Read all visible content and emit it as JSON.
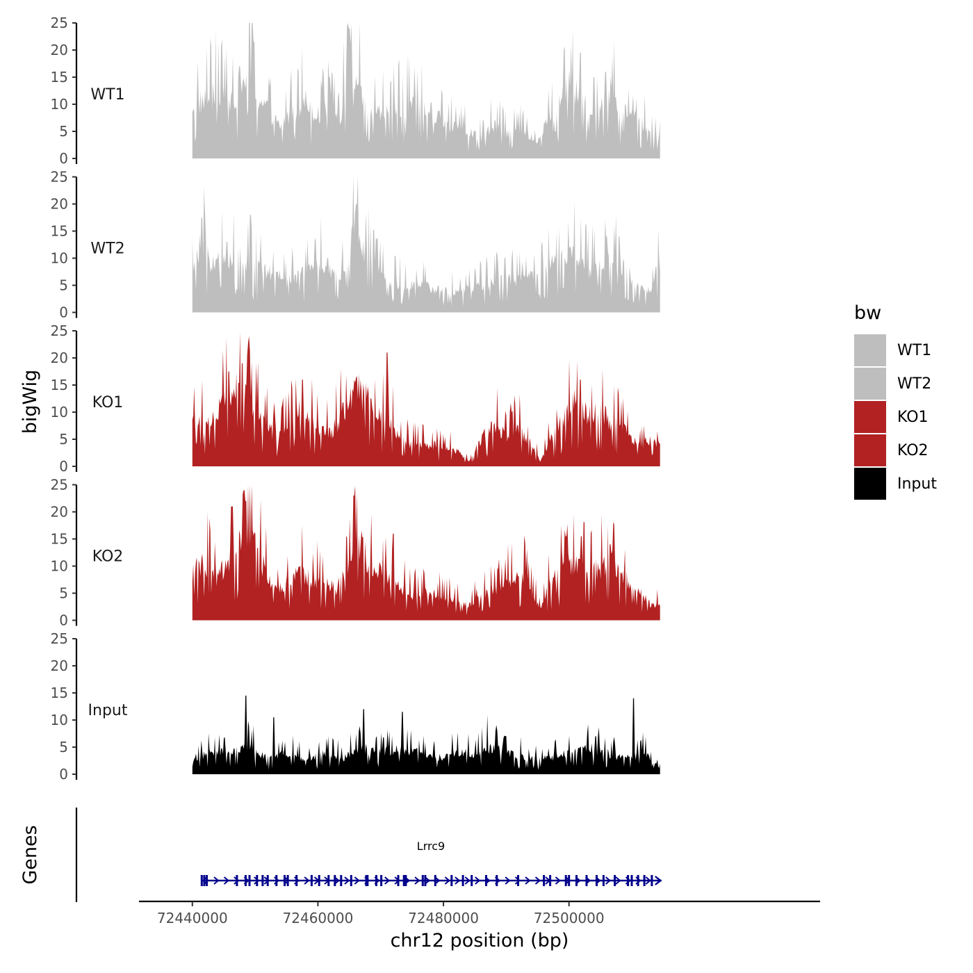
{
  "chart_data": {
    "type": "area",
    "title": "",
    "ylabel": "bigWig",
    "xlabel": "chr12 position (bp)",
    "genes_label": "Genes",
    "ylim": [
      0,
      25
    ],
    "yticks": [
      0,
      5,
      10,
      15,
      20,
      25
    ],
    "xlim": [
      72431500,
      72540000
    ],
    "xticks": [
      72440000,
      72460000,
      72480000,
      72500000
    ],
    "x_range": [
      72440000,
      72514500
    ],
    "legend": {
      "title": "bw",
      "entries": [
        {
          "label": "WT1",
          "color": "#bebebe"
        },
        {
          "label": "WT2",
          "color": "#bebebe"
        },
        {
          "label": "KO1",
          "color": "#b22222"
        },
        {
          "label": "KO2",
          "color": "#b22222"
        },
        {
          "label": "Input",
          "color": "#000000"
        }
      ]
    },
    "series": [
      {
        "name": "WT1",
        "color": "#bebebe",
        "profile": [
          [
            72440000,
            10
          ],
          [
            72442000,
            11
          ],
          [
            72444000,
            12
          ],
          [
            72446000,
            11
          ],
          [
            72448000,
            14
          ],
          [
            72449000,
            17
          ],
          [
            72450000,
            12
          ],
          [
            72452000,
            9
          ],
          [
            72454000,
            6
          ],
          [
            72456000,
            9
          ],
          [
            72458000,
            11
          ],
          [
            72460000,
            8
          ],
          [
            72462000,
            10
          ],
          [
            72463500,
            7
          ],
          [
            72465000,
            19
          ],
          [
            72466000,
            16
          ],
          [
            72467000,
            11
          ],
          [
            72469000,
            8
          ],
          [
            72472000,
            9
          ],
          [
            72475000,
            10
          ],
          [
            72478000,
            9
          ],
          [
            72481000,
            6
          ],
          [
            72484000,
            5
          ],
          [
            72486000,
            4
          ],
          [
            72488000,
            6
          ],
          [
            72490000,
            5
          ],
          [
            72493000,
            5
          ],
          [
            72495000,
            3
          ],
          [
            72496000,
            6
          ],
          [
            72498000,
            10
          ],
          [
            72500000,
            14
          ],
          [
            72502000,
            11
          ],
          [
            72504000,
            8
          ],
          [
            72506000,
            14
          ],
          [
            72508000,
            10
          ],
          [
            72510000,
            8
          ],
          [
            72512000,
            6
          ],
          [
            72514500,
            4
          ]
        ],
        "peaks": [
          [
            72449800,
            21.5
          ],
          [
            72465000,
            24
          ],
          [
            72461800,
            15
          ],
          [
            72501800,
            19.5
          ],
          [
            72505800,
            16
          ],
          [
            72504000,
            15
          ],
          [
            72447500,
            17
          ]
        ]
      },
      {
        "name": "WT2",
        "color": "#bebebe",
        "profile": [
          [
            72440000,
            7
          ],
          [
            72441500,
            14
          ],
          [
            72443000,
            9
          ],
          [
            72445000,
            10
          ],
          [
            72447000,
            11
          ],
          [
            72449000,
            9
          ],
          [
            72451000,
            8
          ],
          [
            72453000,
            7
          ],
          [
            72455000,
            6
          ],
          [
            72457000,
            7
          ],
          [
            72459000,
            8
          ],
          [
            72461000,
            9
          ],
          [
            72463000,
            7
          ],
          [
            72464500,
            9
          ],
          [
            72466000,
            16
          ],
          [
            72467500,
            11
          ],
          [
            72469000,
            8
          ],
          [
            72471000,
            6
          ],
          [
            72474000,
            5
          ],
          [
            72477000,
            5
          ],
          [
            72480000,
            4
          ],
          [
            72483000,
            4
          ],
          [
            72486000,
            5
          ],
          [
            72489000,
            6
          ],
          [
            72492000,
            6
          ],
          [
            72495000,
            7
          ],
          [
            72497000,
            9
          ],
          [
            72499000,
            10
          ],
          [
            72501000,
            11
          ],
          [
            72503000,
            8
          ],
          [
            72505000,
            9
          ],
          [
            72507000,
            10
          ],
          [
            72509000,
            8
          ],
          [
            72511000,
            5
          ],
          [
            72513000,
            4
          ],
          [
            72514500,
            10
          ]
        ],
        "peaks": [
          [
            72441500,
            17.5
          ],
          [
            72449200,
            18
          ],
          [
            72466200,
            20
          ],
          [
            72502600,
            16
          ],
          [
            72506000,
            14
          ],
          [
            72508000,
            14
          ],
          [
            72445500,
            13
          ]
        ]
      },
      {
        "name": "KO1",
        "color": "#b22222",
        "profile": [
          [
            72440000,
            9
          ],
          [
            72442000,
            8
          ],
          [
            72444000,
            10
          ],
          [
            72446000,
            14
          ],
          [
            72448000,
            15
          ],
          [
            72449500,
            12
          ],
          [
            72451000,
            9
          ],
          [
            72453000,
            6
          ],
          [
            72455000,
            7
          ],
          [
            72457000,
            11
          ],
          [
            72458500,
            9
          ],
          [
            72460000,
            7
          ],
          [
            72462000,
            6
          ],
          [
            72464000,
            10
          ],
          [
            72466000,
            14
          ],
          [
            72468000,
            13
          ],
          [
            72469500,
            9
          ],
          [
            72471000,
            10
          ],
          [
            72473000,
            5
          ],
          [
            72476000,
            4
          ],
          [
            72479000,
            4
          ],
          [
            72482000,
            3
          ],
          [
            72484000,
            1
          ],
          [
            72486000,
            5
          ],
          [
            72488000,
            8
          ],
          [
            72490000,
            6
          ],
          [
            72492000,
            7
          ],
          [
            72494000,
            4
          ],
          [
            72495500,
            1
          ],
          [
            72497000,
            5
          ],
          [
            72499000,
            9
          ],
          [
            72501000,
            12
          ],
          [
            72503000,
            10
          ],
          [
            72505000,
            11
          ],
          [
            72507000,
            8
          ],
          [
            72509000,
            7
          ],
          [
            72511000,
            4
          ],
          [
            72513000,
            5
          ],
          [
            72514500,
            4
          ]
        ],
        "peaks": [
          [
            72448000,
            19
          ],
          [
            72471000,
            21
          ],
          [
            72466500,
            17
          ],
          [
            72501800,
            16
          ],
          [
            72445800,
            17.5
          ],
          [
            72457500,
            16
          ],
          [
            72503600,
            15
          ]
        ]
      },
      {
        "name": "KO2",
        "color": "#b22222",
        "profile": [
          [
            72440000,
            9
          ],
          [
            72442000,
            11
          ],
          [
            72444000,
            8
          ],
          [
            72446000,
            12
          ],
          [
            72447500,
            14
          ],
          [
            72449000,
            17
          ],
          [
            72451000,
            11
          ],
          [
            72453000,
            6
          ],
          [
            72455000,
            7
          ],
          [
            72457000,
            9
          ],
          [
            72459000,
            8
          ],
          [
            72461000,
            7
          ],
          [
            72463000,
            6
          ],
          [
            72465000,
            11
          ],
          [
            72466500,
            15
          ],
          [
            72468000,
            11
          ],
          [
            72470000,
            9
          ],
          [
            72472000,
            7
          ],
          [
            72475000,
            5
          ],
          [
            72478000,
            5
          ],
          [
            72481000,
            4
          ],
          [
            72484000,
            3
          ],
          [
            72487000,
            5
          ],
          [
            72490000,
            7
          ],
          [
            72493000,
            8
          ],
          [
            72495500,
            2
          ],
          [
            72497000,
            7
          ],
          [
            72499000,
            11
          ],
          [
            72501000,
            10
          ],
          [
            72503000,
            9
          ],
          [
            72505000,
            10
          ],
          [
            72507000,
            11
          ],
          [
            72509000,
            8
          ],
          [
            72511000,
            6
          ],
          [
            72513000,
            3
          ],
          [
            72514500,
            3
          ]
        ],
        "peaks": [
          [
            72448200,
            24
          ],
          [
            72448500,
            22
          ],
          [
            72465700,
            23
          ],
          [
            72446200,
            21
          ],
          [
            72472000,
            16
          ],
          [
            72499500,
            15.5
          ],
          [
            72502000,
            15.5
          ],
          [
            72506500,
            14
          ]
        ]
      },
      {
        "name": "Input",
        "color": "#000000",
        "profile": [
          [
            72440000,
            3
          ],
          [
            72443000,
            4
          ],
          [
            72446000,
            4
          ],
          [
            72449000,
            5
          ],
          [
            72452000,
            3
          ],
          [
            72455000,
            4
          ],
          [
            72458000,
            3
          ],
          [
            72461000,
            4
          ],
          [
            72464000,
            3
          ],
          [
            72467000,
            5
          ],
          [
            72470000,
            4
          ],
          [
            72473000,
            5
          ],
          [
            72476000,
            4
          ],
          [
            72479000,
            3
          ],
          [
            72482000,
            4
          ],
          [
            72485000,
            4
          ],
          [
            72488000,
            5
          ],
          [
            72491000,
            4
          ],
          [
            72494000,
            3
          ],
          [
            72497000,
            3
          ],
          [
            72500000,
            4
          ],
          [
            72503000,
            5
          ],
          [
            72506000,
            4
          ],
          [
            72509000,
            3
          ],
          [
            72512000,
            4
          ],
          [
            72514500,
            1
          ]
        ],
        "peaks": [
          [
            72448500,
            14.5
          ],
          [
            72510300,
            14
          ],
          [
            72467300,
            12
          ],
          [
            72473500,
            11.5
          ],
          [
            72453000,
            10.5
          ],
          [
            72487000,
            11
          ]
        ]
      }
    ],
    "gene": {
      "name": "Lrrc9",
      "color": "#00008b",
      "start": 72441500,
      "end": 72514500,
      "strand": "+",
      "exons": [
        72441500,
        72441900,
        72442300,
        72447100,
        72448500,
        72449100,
        72450300,
        72451200,
        72452000,
        72453400,
        72454700,
        72455200,
        72456600,
        72459000,
        72460200,
        72461700,
        72462700,
        72463700,
        72465300,
        72467700,
        72467900,
        72469300,
        72470100,
        72472800,
        72473700,
        72474000,
        72476700,
        72477100,
        72478700,
        72481300,
        72483100,
        72484500,
        72486800,
        72488500,
        72491900,
        72496000,
        72497000,
        72499500,
        72500000,
        72501200,
        72502800,
        72504400,
        72505500,
        72507300,
        72509400,
        72510000,
        72511000,
        72512000,
        72513200
      ]
    }
  }
}
